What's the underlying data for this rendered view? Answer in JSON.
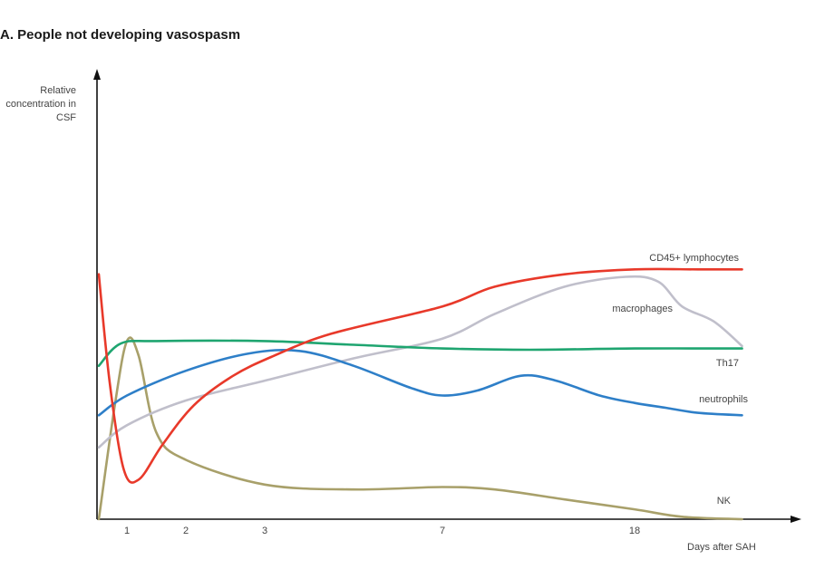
{
  "chart_data": {
    "type": "line",
    "title": "A. People not developing vasospasm",
    "ylabel": [
      "Relative",
      "concentration in",
      "CSF"
    ],
    "xlabel": "Days after SAH",
    "x_ticks": [
      "1",
      "2",
      "3",
      "7",
      "18"
    ],
    "x_tick_positions": [
      1,
      2,
      3,
      7,
      18
    ],
    "x_scale": "nonlinear-categorical",
    "xlim": [
      0,
      25
    ],
    "ylim": [
      0,
      1
    ],
    "y_units": "relative",
    "grid": false,
    "series": [
      {
        "name": "CD45+ lymphocytes",
        "color": "#e8392a",
        "points": [
          [
            0.1,
            0.99
          ],
          [
            0.45,
            0.55
          ],
          [
            0.9,
            0.2
          ],
          [
            1.2,
            0.16
          ],
          [
            1.6,
            0.3
          ],
          [
            2.1,
            0.46
          ],
          [
            2.6,
            0.58
          ],
          [
            3.2,
            0.66
          ],
          [
            4.5,
            0.75
          ],
          [
            7,
            0.86
          ],
          [
            10,
            0.94
          ],
          [
            14,
            0.99
          ],
          [
            18,
            1.01
          ],
          [
            22,
            1.01
          ],
          [
            24.8,
            1.01
          ]
        ]
      },
      {
        "name": "macrophages",
        "color": "#c0bfcb",
        "points": [
          [
            0.1,
            0.29
          ],
          [
            1,
            0.38
          ],
          [
            2,
            0.48
          ],
          [
            3,
            0.56
          ],
          [
            5,
            0.65
          ],
          [
            7,
            0.73
          ],
          [
            10,
            0.83
          ],
          [
            14,
            0.94
          ],
          [
            17.5,
            0.98
          ],
          [
            19.5,
            0.96
          ],
          [
            21,
            0.86
          ],
          [
            23,
            0.8
          ],
          [
            24.8,
            0.7
          ]
        ]
      },
      {
        "name": "Th17",
        "color": "#1fa570",
        "points": [
          [
            0.1,
            0.62
          ],
          [
            0.8,
            0.71
          ],
          [
            1.5,
            0.72
          ],
          [
            3,
            0.72
          ],
          [
            5,
            0.705
          ],
          [
            7,
            0.69
          ],
          [
            12,
            0.685
          ],
          [
            18,
            0.69
          ],
          [
            24.8,
            0.69
          ]
        ]
      },
      {
        "name": "neutrophils",
        "color": "#2e7fc8",
        "points": [
          [
            0.1,
            0.42
          ],
          [
            1,
            0.5
          ],
          [
            2,
            0.6
          ],
          [
            2.8,
            0.67
          ],
          [
            3.8,
            0.68
          ],
          [
            5,
            0.62
          ],
          [
            6.3,
            0.53
          ],
          [
            7,
            0.5
          ],
          [
            9,
            0.52
          ],
          [
            11.5,
            0.58
          ],
          [
            13.5,
            0.56
          ],
          [
            16,
            0.5
          ],
          [
            18,
            0.47
          ],
          [
            20,
            0.45
          ],
          [
            22,
            0.43
          ],
          [
            24.8,
            0.42
          ]
        ]
      },
      {
        "name": "NK",
        "color": "#a8a06a",
        "points": [
          [
            0.1,
            0.0
          ],
          [
            0.6,
            0.45
          ],
          [
            1,
            0.72
          ],
          [
            1.2,
            0.66
          ],
          [
            1.5,
            0.35
          ],
          [
            2,
            0.24
          ],
          [
            3,
            0.14
          ],
          [
            5,
            0.12
          ],
          [
            7,
            0.13
          ],
          [
            10,
            0.12
          ],
          [
            14,
            0.08
          ],
          [
            18,
            0.04
          ],
          [
            21,
            0.01
          ],
          [
            24.8,
            0.0
          ]
        ]
      }
    ]
  }
}
